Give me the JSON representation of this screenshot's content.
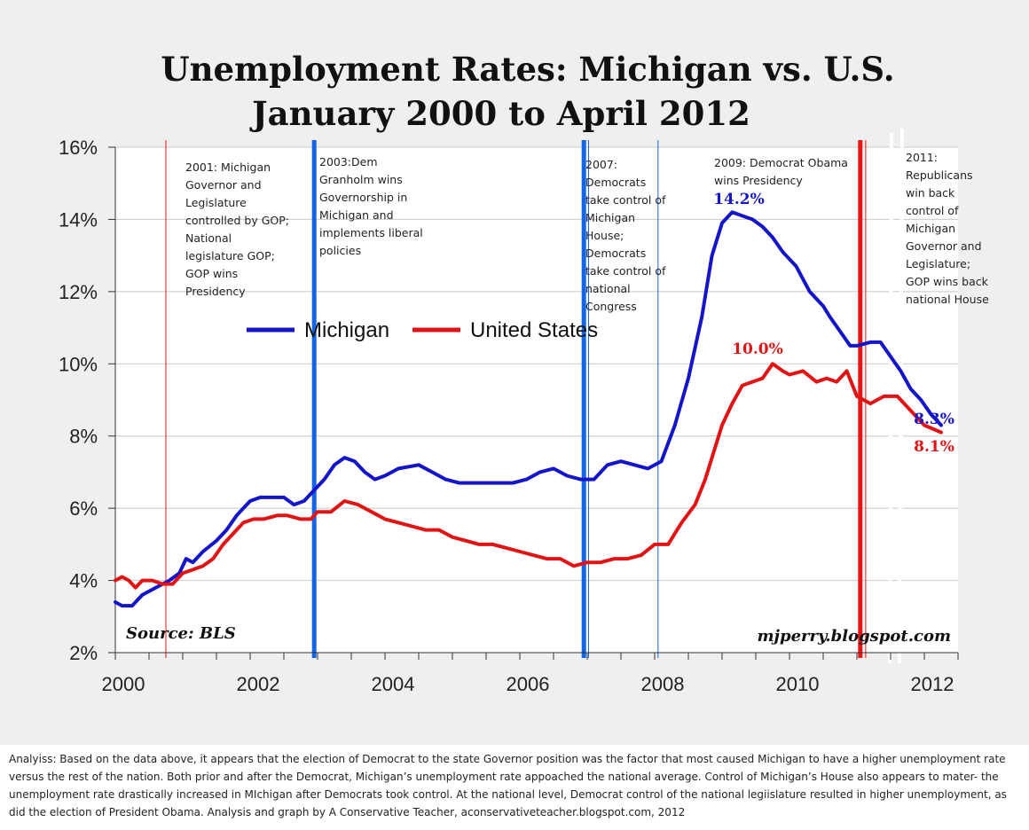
{
  "title": {
    "line1": "Unemployment Rates: Michigan vs. U.S.",
    "line2": "January 2000 to April 2012"
  },
  "colors": {
    "michigan": "#1414c8",
    "us": "#e01414",
    "dem": "#1464e6",
    "gop": "#e61414"
  },
  "chart_data": {
    "type": "line",
    "title": "Unemployment Rates: Michigan vs. U.S. January 2000 to April 2012",
    "xlabel": "",
    "ylabel": "",
    "xlim": [
      2000,
      2012.5
    ],
    "ylim": [
      2,
      16
    ],
    "x_ticks": [
      2000,
      2002,
      2004,
      2006,
      2008,
      2010,
      2012
    ],
    "y_ticks": [
      2,
      4,
      6,
      8,
      10,
      12,
      14,
      16
    ],
    "y_tick_labels": [
      "2%",
      "4%",
      "6%",
      "8%",
      "10%",
      "12%",
      "14%",
      "16%"
    ],
    "grid": "horizontal",
    "legend": [
      "Michigan",
      "United States"
    ],
    "series": [
      {
        "name": "Michigan",
        "x": [
          2000.0,
          2000.1,
          2000.25,
          2000.4,
          2000.6,
          2000.8,
          2000.95,
          2001.05,
          2001.15,
          2001.3,
          2001.5,
          2001.65,
          2001.8,
          2002.0,
          2002.15,
          2002.3,
          2002.5,
          2002.65,
          2002.8,
          2002.95,
          2003.1,
          2003.25,
          2003.4,
          2003.55,
          2003.7,
          2003.85,
          2004.0,
          2004.2,
          2004.5,
          2004.7,
          2004.9,
          2005.1,
          2005.5,
          2005.9,
          2006.1,
          2006.3,
          2006.5,
          2006.7,
          2006.9,
          2007.1,
          2007.3,
          2007.5,
          2007.7,
          2007.9,
          2008.1,
          2008.3,
          2008.5,
          2008.7,
          2008.85,
          2009.0,
          2009.15,
          2009.3,
          2009.45,
          2009.6,
          2009.75,
          2009.9,
          2010.1,
          2010.3,
          2010.5,
          2010.6,
          2010.75,
          2010.9,
          2011.0,
          2011.2,
          2011.35,
          2011.5,
          2011.65,
          2011.8,
          2011.95,
          2012.1,
          2012.25
        ],
        "values": [
          3.4,
          3.3,
          3.3,
          3.6,
          3.8,
          4.0,
          4.2,
          4.6,
          4.5,
          4.8,
          5.1,
          5.4,
          5.8,
          6.2,
          6.3,
          6.3,
          6.3,
          6.1,
          6.2,
          6.5,
          6.8,
          7.2,
          7.4,
          7.3,
          7.0,
          6.8,
          6.9,
          7.1,
          7.2,
          7.0,
          6.8,
          6.7,
          6.7,
          6.7,
          6.8,
          7.0,
          7.1,
          6.9,
          6.8,
          6.8,
          7.2,
          7.3,
          7.2,
          7.1,
          7.3,
          8.3,
          9.6,
          11.3,
          13.0,
          13.9,
          14.2,
          14.1,
          14.0,
          13.8,
          13.5,
          13.1,
          12.7,
          12.0,
          11.6,
          11.3,
          10.9,
          10.5,
          10.5,
          10.6,
          10.6,
          10.2,
          9.8,
          9.3,
          9.0,
          8.6,
          8.3
        ]
      },
      {
        "name": "United States",
        "x": [
          2000.0,
          2000.1,
          2000.2,
          2000.3,
          2000.4,
          2000.55,
          2000.7,
          2000.85,
          2001.0,
          2001.15,
          2001.3,
          2001.45,
          2001.6,
          2001.75,
          2001.9,
          2002.05,
          2002.2,
          2002.4,
          2002.55,
          2002.75,
          2002.9,
          2003.0,
          2003.2,
          2003.4,
          2003.6,
          2003.8,
          2004.0,
          2004.2,
          2004.4,
          2004.6,
          2004.8,
          2005.0,
          2005.2,
          2005.4,
          2005.6,
          2005.8,
          2006.0,
          2006.2,
          2006.4,
          2006.6,
          2006.8,
          2007.0,
          2007.2,
          2007.4,
          2007.6,
          2007.8,
          2008.0,
          2008.2,
          2008.4,
          2008.6,
          2008.75,
          2008.9,
          2009.0,
          2009.15,
          2009.3,
          2009.45,
          2009.6,
          2009.75,
          2009.9,
          2010.0,
          2010.2,
          2010.4,
          2010.55,
          2010.7,
          2010.85,
          2011.0,
          2011.2,
          2011.4,
          2011.6,
          2011.8,
          2012.0,
          2012.25
        ],
        "values": [
          4.0,
          4.1,
          4.0,
          3.8,
          4.0,
          4.0,
          3.9,
          3.9,
          4.2,
          4.3,
          4.4,
          4.6,
          5.0,
          5.3,
          5.6,
          5.7,
          5.7,
          5.8,
          5.8,
          5.7,
          5.7,
          5.9,
          5.9,
          6.2,
          6.1,
          5.9,
          5.7,
          5.6,
          5.5,
          5.4,
          5.4,
          5.2,
          5.1,
          5.0,
          5.0,
          4.9,
          4.8,
          4.7,
          4.6,
          4.6,
          4.4,
          4.5,
          4.5,
          4.6,
          4.6,
          4.7,
          5.0,
          5.0,
          5.6,
          6.1,
          6.8,
          7.7,
          8.3,
          8.9,
          9.4,
          9.5,
          9.6,
          10.0,
          9.8,
          9.7,
          9.8,
          9.5,
          9.6,
          9.5,
          9.8,
          9.1,
          8.9,
          9.1,
          9.1,
          8.7,
          8.3,
          8.1
        ]
      }
    ],
    "vertical_markers": [
      {
        "name": "gop-2001",
        "x": 2000.75,
        "party": "gop",
        "weight": "thin"
      },
      {
        "name": "dem-2003",
        "x": 2002.95,
        "party": "dem",
        "weight": "thick"
      },
      {
        "name": "dem-2007",
        "x": 2006.95,
        "party": "dem",
        "weight": "thick"
      },
      {
        "name": "dem-2007-thin",
        "x": 2007.02,
        "party": "dem",
        "weight": "thin"
      },
      {
        "name": "dem-2009",
        "x": 2008.05,
        "party": "dem",
        "weight": "thin"
      },
      {
        "name": "gop-2011",
        "x": 2011.05,
        "party": "gop",
        "weight": "thick"
      },
      {
        "name": "gop-2011-thin",
        "x": 2011.13,
        "party": "gop",
        "weight": "thin"
      }
    ],
    "peak_labels": [
      {
        "name": "michigan-peak",
        "text": "14.2%",
        "series": "michigan"
      },
      {
        "name": "us-peak",
        "text": "10.0%",
        "series": "us"
      },
      {
        "name": "michigan-last",
        "text": "8.3%",
        "series": "michigan"
      },
      {
        "name": "us-last",
        "text": "8.1%",
        "series": "us"
      }
    ],
    "annotations": [
      {
        "name": "ann-2001",
        "lines": [
          "2001: Michigan",
          "Governor and",
          "Legislature",
          "controlled by GOP;",
          "National",
          "legislature GOP;",
          "GOP wins",
          "Presidency"
        ]
      },
      {
        "name": "ann-2003",
        "lines": [
          "2003:Dem",
          "Granholm wins",
          "Governorship in",
          "Michigan and",
          "implements liberal",
          "policies"
        ]
      },
      {
        "name": "ann-2007",
        "lines": [
          "2007:",
          "Democrats",
          "take control of",
          "Michigan",
          "House;",
          "Democrats",
          "take control of",
          "national",
          "Congress"
        ]
      },
      {
        "name": "ann-2009",
        "lines": [
          "2009: Democrat Obama",
          "wins Presidency"
        ]
      },
      {
        "name": "ann-2011",
        "lines": [
          "2011:",
          "Republicans",
          "win back",
          "control of",
          "Michigan",
          "Governor and",
          "Legislature;",
          "GOP wins back",
          "national House"
        ]
      }
    ],
    "source": "Source: BLS",
    "credit": "mjperry.blogspot.com"
  },
  "analysis": "Analyiss: Based on the data above, it appears that the election of Democrat to the state Governor position was the factor that most caused Michigan to have a higher unemployment rate versus the rest of the nation. Both prior and after the Democrat, Michigan’s unemployment rate appoached the national average. Control of Michigan’s House also appears to mater- the unemployment rate drastically increased in MIchigan after Democrats took control. At the national level, Democrat control of the national legiislature resulted in higher unemployment, as did the election of President Obama. Analysis and graph by A Conservative Teacher, aconservativeteacher.blogspot.com, 2012"
}
